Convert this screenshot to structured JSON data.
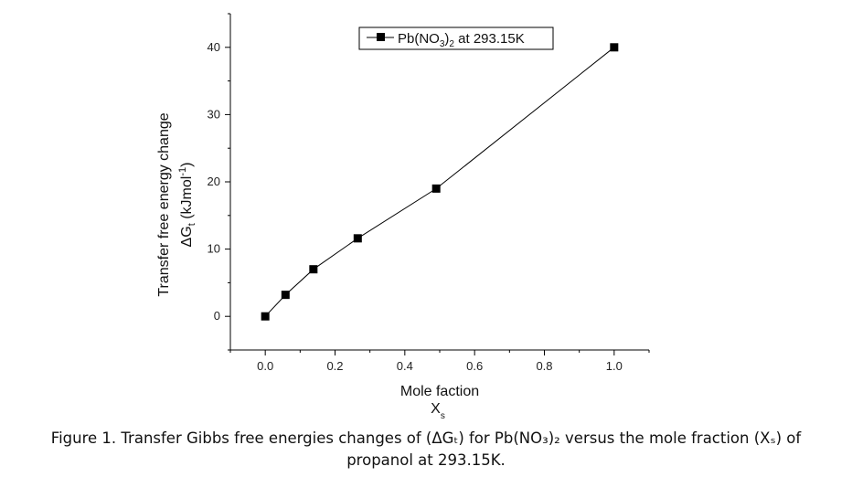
{
  "chart_data": {
    "type": "line",
    "x": [
      0.0,
      0.058,
      0.138,
      0.265,
      0.49,
      1.0
    ],
    "series": [
      {
        "name": "Pb(NO3)2 at 293.15K",
        "values": [
          0.0,
          3.2,
          7.0,
          11.6,
          19.0,
          40.0
        ]
      }
    ],
    "legend": {
      "prefix": "Pb(NO",
      "sub1": "3",
      "mid": ")",
      "sub2": "2",
      "suffix": " at 293.15K",
      "placement": "top-center"
    },
    "xlim": [
      -0.1,
      1.1
    ],
    "ylim": [
      -5,
      45
    ],
    "xticks": [
      0.0,
      0.2,
      0.4,
      0.6,
      0.8,
      1.0
    ],
    "xtick_labels": [
      "0.0",
      "0.2",
      "0.4",
      "0.6",
      "0.8",
      "1.0"
    ],
    "yticks": [
      0,
      10,
      20,
      30,
      40
    ],
    "ytick_labels": [
      "0",
      "10",
      "20",
      "30",
      "40"
    ],
    "xlabel_line1": "Mole faction",
    "xlabel_line2": "X",
    "xlabel_line2_sub": "s",
    "ylabel_line1": "Transfer free energy change",
    "ylabel_line2_prefix": "ΔG",
    "ylabel_line2_sub": "t",
    "ylabel_line2_mid": " (kJmol",
    "ylabel_line2_sup": "-1",
    "ylabel_line2_suffix": ")",
    "grid": false,
    "marker": "square",
    "line_color": "#000000",
    "marker_color": "#000000"
  },
  "caption": {
    "line1": "Figure 1. Transfer Gibbs free energies changes of (ΔGₜ) for Pb(NO₃)₂ versus the mole fraction (Xₛ) of",
    "line2": "propanol at 293.15K."
  }
}
